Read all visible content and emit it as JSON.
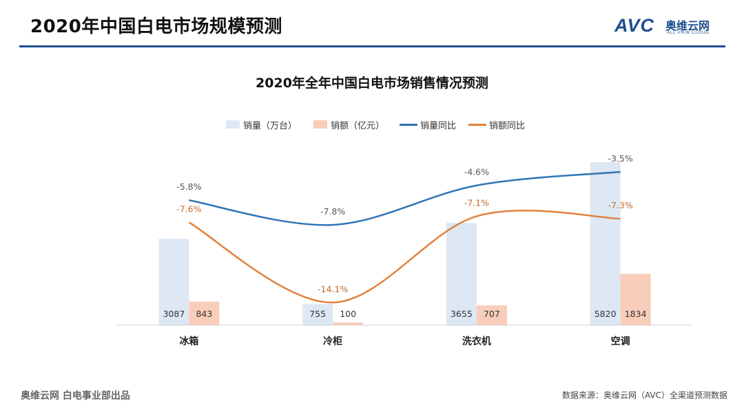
{
  "header": {
    "title": "2020年中国白电市场规模预测",
    "logo_text": "AVC",
    "logo_cn": "奥维云网",
    "logo_en": "ALL VIEW CLOUD"
  },
  "colors": {
    "rule": "#1d4e8f",
    "volume_bar": "#dde8f4",
    "revenue_bar": "#f8cdb9",
    "volume_line": "#2e74b5",
    "revenue_line": "#e0813b",
    "volume_label": "#555555",
    "revenue_label": "#c5692a"
  },
  "chart_data": {
    "type": "bar",
    "title": "2020年全年中国白电市场销售情况预测",
    "categories": [
      "冰箱",
      "冷柜",
      "洗衣机",
      "空调"
    ],
    "series": [
      {
        "name": "销量（万台）",
        "kind": "bar",
        "values": [
          3087,
          755,
          3655,
          5820
        ]
      },
      {
        "name": "销额（亿元）",
        "kind": "bar",
        "values": [
          843,
          100,
          707,
          1834
        ]
      },
      {
        "name": "销量同比",
        "kind": "line",
        "values": [
          -5.8,
          -7.8,
          -4.6,
          -3.5
        ],
        "labels": [
          "-5.8%",
          "-7.8%",
          "-4.6%",
          "-3.5%"
        ]
      },
      {
        "name": "销额同比",
        "kind": "line",
        "values": [
          -7.6,
          -14.1,
          -7.1,
          -7.3
        ],
        "labels": [
          "-7.6%",
          "-14.1%",
          "-7.1%",
          "-7.3%"
        ]
      }
    ],
    "xlabel": "",
    "ylabel": "",
    "legend_position": "top-center",
    "grid": false
  },
  "footer": {
    "left": "奥维云网  白电事业部出品",
    "right": "数据来源：奥维云网（AVC）全渠道预测数据"
  }
}
